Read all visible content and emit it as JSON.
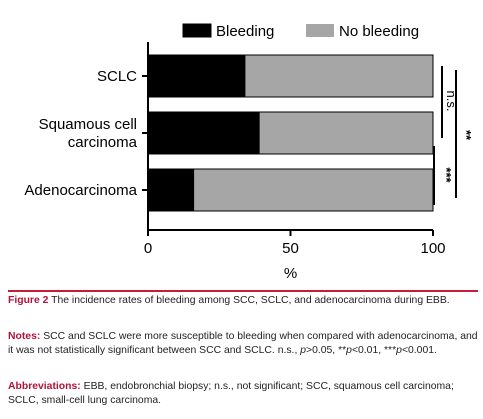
{
  "chart_data": {
    "type": "bar",
    "orientation": "horizontal",
    "stacked": true,
    "categories": [
      "SCLC",
      "Squamous cell carcinoma",
      "Adenocarcinoma"
    ],
    "category_lines": [
      [
        "SCLC"
      ],
      [
        "Squamous cell",
        "carcinoma"
      ],
      [
        "Adenocarcinoma"
      ]
    ],
    "series": [
      {
        "name": "Bleeding",
        "values": [
          34,
          39,
          16
        ],
        "color": "#000000"
      },
      {
        "name": "No bleeding",
        "values": [
          66,
          61,
          84
        ],
        "color": "#a6a6a6"
      }
    ],
    "xlabel": "%",
    "xlim": [
      0,
      100
    ],
    "xticks": [
      0,
      50,
      100
    ],
    "grid": false,
    "legend_position": "top",
    "annotations": [
      {
        "label": "n.s.",
        "between": [
          "SCLC",
          "Squamous cell carcinoma"
        ]
      },
      {
        "label": "***",
        "between": [
          "Squamous cell carcinoma",
          "Adenocarcinoma"
        ]
      },
      {
        "label": "**",
        "between": [
          "SCLC",
          "Adenocarcinoma"
        ]
      }
    ]
  },
  "caption": {
    "figure_label": "Figure 2",
    "figure_text": " The incidence rates of bleeding among SCC, SCLC, and adenocarcinoma during EBB.",
    "notes_label": "Notes:",
    "notes_text": " SCC and SCLC were more susceptible to bleeding when compared with adenocarcinoma, and it was not statistically significant between SCC and SCLC. n.s.,",
    "notes_p1": "p",
    "notes_t1": ">0.05, **",
    "notes_p2": "p",
    "notes_t2": "<0.01, ***",
    "notes_p3": "p",
    "notes_t3": "<0.001.",
    "abbr_label": "Abbreviations:",
    "abbr_text": " EBB, endobronchial biopsy; n.s., not significant; SCC, squamous cell carcinoma; SCLC, small-cell lung carcinoma."
  }
}
